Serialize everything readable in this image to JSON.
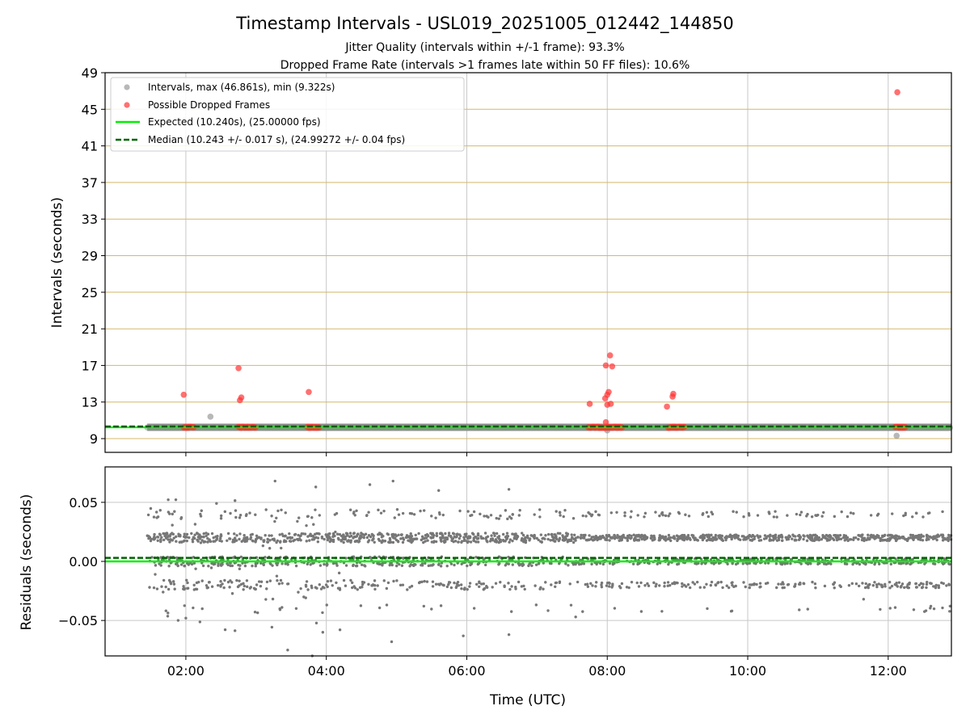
{
  "chart_data": [
    {
      "type": "scatter",
      "title": "Timestamp Intervals - USL019_20251005_012442_144850",
      "subtitles": [
        "Jitter Quality (intervals within +/-1 frame): 93.3%",
        "Dropped Frame Rate (intervals >1 frames late within 50 FF files): 10.6%"
      ],
      "ylabel": "Intervals (seconds)",
      "xlabel": "",
      "xlim_hours": [
        0.85,
        12.9
      ],
      "ylim": [
        7.5,
        49
      ],
      "yticks": [
        9,
        13,
        17,
        21,
        25,
        29,
        33,
        37,
        41,
        45,
        49
      ],
      "ytick_labels": [
        "9",
        "13",
        "17",
        "21",
        "25",
        "29",
        "33",
        "37",
        "41",
        "45",
        "49"
      ],
      "xticks_hours": [
        2,
        4,
        6,
        8,
        10,
        12
      ],
      "grid": "vertical grey, horizontal gold",
      "legend_position": "top-left",
      "legend": [
        "Intervals, max (46.861s), min (9.322s)",
        "Possible Dropped Frames",
        "Expected (10.240s), (25.00000 fps)",
        "Median (10.243 +/- 0.017 s), (24.99272 +/- 0.04 fps)"
      ],
      "expected_value": 10.24,
      "median_value": 10.243,
      "series": [
        {
          "name": "Intervals",
          "color": "#888888",
          "band": {
            "x_start": 1.45,
            "x_end": 12.9,
            "y": 10.24
          },
          "outliers": [
            {
              "x": 2.35,
              "y": 11.4
            },
            {
              "x": 8.0,
              "y": 9.9
            },
            {
              "x": 12.12,
              "y": 9.32
            }
          ]
        },
        {
          "name": "Possible Dropped Frames",
          "color": "#ff3333",
          "clusters": [
            {
              "x_start": 1.97,
              "x_end": 2.12,
              "y": 10.24
            },
            {
              "x_start": 2.75,
              "x_end": 3.0,
              "y": 10.24
            },
            {
              "x_start": 3.73,
              "x_end": 3.9,
              "y": 10.24
            },
            {
              "x_start": 7.73,
              "x_end": 8.22,
              "y": 10.24
            },
            {
              "x_start": 8.87,
              "x_end": 9.1,
              "y": 10.24
            },
            {
              "x_start": 12.1,
              "x_end": 12.25,
              "y": 10.24
            }
          ],
          "points": [
            {
              "x": 1.97,
              "y": 13.8
            },
            {
              "x": 2.75,
              "y": 16.7
            },
            {
              "x": 2.77,
              "y": 13.2
            },
            {
              "x": 2.79,
              "y": 13.5
            },
            {
              "x": 3.75,
              "y": 14.1
            },
            {
              "x": 7.75,
              "y": 12.8
            },
            {
              "x": 7.97,
              "y": 13.4
            },
            {
              "x": 7.98,
              "y": 17.0
            },
            {
              "x": 8.0,
              "y": 13.8
            },
            {
              "x": 8.02,
              "y": 14.1
            },
            {
              "x": 8.04,
              "y": 18.1
            },
            {
              "x": 8.05,
              "y": 12.8
            },
            {
              "x": 8.07,
              "y": 16.9
            },
            {
              "x": 7.98,
              "y": 10.8
            },
            {
              "x": 8.0,
              "y": 12.7
            },
            {
              "x": 8.85,
              "y": 12.5
            },
            {
              "x": 8.93,
              "y": 13.6
            },
            {
              "x": 8.94,
              "y": 13.9
            },
            {
              "x": 12.13,
              "y": 46.86
            }
          ]
        }
      ]
    },
    {
      "type": "scatter",
      "ylabel": "Residuals (seconds)",
      "xlabel": "Time (UTC)",
      "xlim_hours": [
        0.85,
        12.9
      ],
      "ylim": [
        -0.08,
        0.08
      ],
      "yticks": [
        0.05,
        0.0,
        -0.05
      ],
      "ytick_labels": [
        "0.05",
        "0.00",
        "−0.05"
      ],
      "xticks_hours": [
        2,
        4,
        6,
        8,
        10,
        12
      ],
      "xtick_labels": [
        "02:00",
        "04:00",
        "06:00",
        "08:00",
        "10:00",
        "12:00"
      ],
      "grid": true,
      "expected_residual": 0.0,
      "median_residual": 0.003,
      "series": [
        {
          "name": "Residuals",
          "color": "#777777",
          "x_start": 1.45,
          "x_end": 12.9,
          "count": 2600,
          "levels": [
            {
              "y": 0.02,
              "share": 0.46
            },
            {
              "y": 0.0,
              "share": 0.3
            },
            {
              "y": -0.02,
              "share": 0.14
            },
            {
              "y": 0.04,
              "share": 0.06
            },
            {
              "y": -0.04,
              "share": 0.02
            }
          ],
          "sample_points": [
            {
              "x": 3.27,
              "y": 0.068
            },
            {
              "x": 3.85,
              "y": 0.063
            },
            {
              "x": 4.62,
              "y": 0.065
            },
            {
              "x": 4.95,
              "y": 0.068
            },
            {
              "x": 5.6,
              "y": 0.06
            },
            {
              "x": 6.6,
              "y": 0.061
            },
            {
              "x": 3.45,
              "y": -0.075
            },
            {
              "x": 3.95,
              "y": -0.06
            },
            {
              "x": 4.93,
              "y": -0.068
            },
            {
              "x": 5.95,
              "y": -0.063
            },
            {
              "x": 6.6,
              "y": -0.062
            },
            {
              "x": 2.0,
              "y": -0.048
            },
            {
              "x": 3.8,
              "y": -0.08
            },
            {
              "x": 7.55,
              "y": -0.047
            },
            {
              "x": 11.65,
              "y": -0.032
            }
          ]
        }
      ]
    }
  ]
}
